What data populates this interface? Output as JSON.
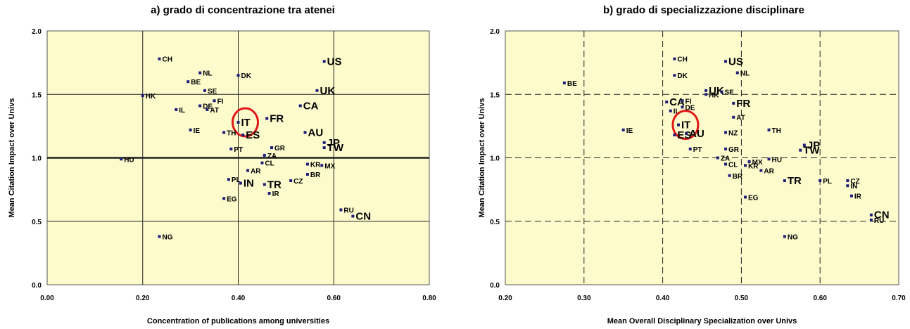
{
  "chart_data": [
    {
      "type": "scatter",
      "title": "a) grado di concentrazione tra atenei",
      "xlabel": "Concentration of publications among universities",
      "ylabel": "Mean Citation Impact over Univs",
      "xlim": [
        0.0,
        0.8
      ],
      "ylim": [
        0.0,
        2.0
      ],
      "xticks": [
        "0.00",
        "0.20",
        "0.40",
        "0.60",
        "0.80"
      ],
      "yticks": [
        "0.0",
        "0.5",
        "1.0",
        "1.5",
        "2.0"
      ],
      "grid": true,
      "highlight": "IT",
      "points": [
        {
          "label": "CH",
          "x": 0.235,
          "y": 1.78,
          "big": false
        },
        {
          "label": "US",
          "x": 0.58,
          "y": 1.76,
          "big": true
        },
        {
          "label": "NL",
          "x": 0.32,
          "y": 1.67,
          "big": false
        },
        {
          "label": "DK",
          "x": 0.4,
          "y": 1.65,
          "big": false
        },
        {
          "label": "BE",
          "x": 0.295,
          "y": 1.6,
          "big": false
        },
        {
          "label": "SE",
          "x": 0.33,
          "y": 1.53,
          "big": false
        },
        {
          "label": "UK",
          "x": 0.565,
          "y": 1.53,
          "big": true
        },
        {
          "label": "HK",
          "x": 0.2,
          "y": 1.49,
          "big": false
        },
        {
          "label": "FI",
          "x": 0.35,
          "y": 1.45,
          "big": false
        },
        {
          "label": "DE",
          "x": 0.32,
          "y": 1.41,
          "big": false
        },
        {
          "label": "CA",
          "x": 0.53,
          "y": 1.41,
          "big": true
        },
        {
          "label": "IL",
          "x": 0.27,
          "y": 1.38,
          "big": false
        },
        {
          "label": "AT",
          "x": 0.335,
          "y": 1.38,
          "big": false
        },
        {
          "label": "FR",
          "x": 0.46,
          "y": 1.31,
          "big": true
        },
        {
          "label": "IT",
          "x": 0.4,
          "y": 1.28,
          "big": true
        },
        {
          "label": "IE",
          "x": 0.3,
          "y": 1.22,
          "big": false
        },
        {
          "label": "TH",
          "x": 0.37,
          "y": 1.2,
          "big": false
        },
        {
          "label": "ES",
          "x": 0.41,
          "y": 1.18,
          "big": true
        },
        {
          "label": "AU",
          "x": 0.54,
          "y": 1.2,
          "big": true
        },
        {
          "label": "JP",
          "x": 0.58,
          "y": 1.12,
          "big": true
        },
        {
          "label": "TW",
          "x": 0.58,
          "y": 1.08,
          "big": true
        },
        {
          "label": "PT",
          "x": 0.385,
          "y": 1.07,
          "big": false
        },
        {
          "label": "GR",
          "x": 0.47,
          "y": 1.08,
          "big": false
        },
        {
          "label": "ZA",
          "x": 0.455,
          "y": 1.02,
          "big": false
        },
        {
          "label": "HU",
          "x": 0.155,
          "y": 0.99,
          "big": false
        },
        {
          "label": "CL",
          "x": 0.45,
          "y": 0.96,
          "big": false
        },
        {
          "label": "KR",
          "x": 0.545,
          "y": 0.95,
          "big": false
        },
        {
          "label": "MX",
          "x": 0.575,
          "y": 0.94,
          "big": false
        },
        {
          "label": "AR",
          "x": 0.42,
          "y": 0.9,
          "big": false
        },
        {
          "label": "BR",
          "x": 0.545,
          "y": 0.87,
          "big": false
        },
        {
          "label": "PL",
          "x": 0.38,
          "y": 0.83,
          "big": false
        },
        {
          "label": "CZ",
          "x": 0.51,
          "y": 0.82,
          "big": false
        },
        {
          "label": "IN",
          "x": 0.405,
          "y": 0.8,
          "big": true
        },
        {
          "label": "TR",
          "x": 0.455,
          "y": 0.79,
          "big": true
        },
        {
          "label": "IR",
          "x": 0.465,
          "y": 0.72,
          "big": false
        },
        {
          "label": "EG",
          "x": 0.37,
          "y": 0.68,
          "big": false
        },
        {
          "label": "RU",
          "x": 0.615,
          "y": 0.59,
          "big": false
        },
        {
          "label": "CN",
          "x": 0.64,
          "y": 0.54,
          "big": true
        },
        {
          "label": "NG",
          "x": 0.235,
          "y": 0.38,
          "big": false
        }
      ]
    },
    {
      "type": "scatter",
      "title": "b) grado di specializzazione disciplinare",
      "xlabel": "Mean Overall Disciplinary Specialization over Univs",
      "ylabel": "Mean Citation Impact over Univs",
      "xlim": [
        0.2,
        0.7
      ],
      "ylim": [
        0.0,
        2.0
      ],
      "xticks": [
        "0.20",
        "0.30",
        "0.40",
        "0.50",
        "0.60",
        "0.70"
      ],
      "yticks": [
        "0.0",
        "0.5",
        "1.0",
        "1.5",
        "2.0"
      ],
      "grid": true,
      "highlight": "IT",
      "points": [
        {
          "label": "CH",
          "x": 0.415,
          "y": 1.78,
          "big": false
        },
        {
          "label": "US",
          "x": 0.48,
          "y": 1.76,
          "big": true
        },
        {
          "label": "DK",
          "x": 0.415,
          "y": 1.65,
          "big": false
        },
        {
          "label": "NL",
          "x": 0.495,
          "y": 1.67,
          "big": false
        },
        {
          "label": "BE",
          "x": 0.275,
          "y": 1.59,
          "big": false
        },
        {
          "label": "UK",
          "x": 0.455,
          "y": 1.53,
          "big": true
        },
        {
          "label": "SE",
          "x": 0.475,
          "y": 1.52,
          "big": false
        },
        {
          "label": "HK",
          "x": 0.455,
          "y": 1.5,
          "big": false
        },
        {
          "label": "CA",
          "x": 0.405,
          "y": 1.44,
          "big": true
        },
        {
          "label": "FI",
          "x": 0.425,
          "y": 1.45,
          "big": false
        },
        {
          "label": "FR",
          "x": 0.49,
          "y": 1.43,
          "big": true
        },
        {
          "label": "DE",
          "x": 0.425,
          "y": 1.4,
          "big": false
        },
        {
          "label": "IL",
          "x": 0.41,
          "y": 1.37,
          "big": false
        },
        {
          "label": "AT",
          "x": 0.49,
          "y": 1.32,
          "big": false
        },
        {
          "label": "IT",
          "x": 0.42,
          "y": 1.26,
          "big": true
        },
        {
          "label": "IE",
          "x": 0.35,
          "y": 1.22,
          "big": false
        },
        {
          "label": "TH",
          "x": 0.535,
          "y": 1.22,
          "big": false
        },
        {
          "label": "NZ",
          "x": 0.48,
          "y": 1.2,
          "big": false
        },
        {
          "label": "ES",
          "x": 0.415,
          "y": 1.18,
          "big": true
        },
        {
          "label": "AU",
          "x": 0.43,
          "y": 1.19,
          "big": true
        },
        {
          "label": "JP",
          "x": 0.58,
          "y": 1.1,
          "big": true
        },
        {
          "label": "PT",
          "x": 0.435,
          "y": 1.07,
          "big": false
        },
        {
          "label": "GR",
          "x": 0.48,
          "y": 1.07,
          "big": false
        },
        {
          "label": "TW",
          "x": 0.575,
          "y": 1.06,
          "big": true
        },
        {
          "label": "ZA",
          "x": 0.47,
          "y": 1.0,
          "big": false
        },
        {
          "label": "HU",
          "x": 0.535,
          "y": 0.99,
          "big": false
        },
        {
          "label": "MX",
          "x": 0.51,
          "y": 0.97,
          "big": false
        },
        {
          "label": "CL",
          "x": 0.48,
          "y": 0.95,
          "big": false
        },
        {
          "label": "KR",
          "x": 0.505,
          "y": 0.94,
          "big": false
        },
        {
          "label": "AR",
          "x": 0.525,
          "y": 0.9,
          "big": false
        },
        {
          "label": "BR",
          "x": 0.485,
          "y": 0.86,
          "big": false
        },
        {
          "label": "CZ",
          "x": 0.635,
          "y": 0.82,
          "big": false
        },
        {
          "label": "TR",
          "x": 0.555,
          "y": 0.82,
          "big": true
        },
        {
          "label": "PL",
          "x": 0.6,
          "y": 0.82,
          "big": false
        },
        {
          "label": "IN",
          "x": 0.635,
          "y": 0.78,
          "big": false
        },
        {
          "label": "IR",
          "x": 0.64,
          "y": 0.7,
          "big": false
        },
        {
          "label": "EG",
          "x": 0.505,
          "y": 0.69,
          "big": false
        },
        {
          "label": "CN",
          "x": 0.665,
          "y": 0.55,
          "big": true
        },
        {
          "label": "RU",
          "x": 0.665,
          "y": 0.51,
          "big": false
        },
        {
          "label": "NG",
          "x": 0.555,
          "y": 0.38,
          "big": false
        }
      ]
    }
  ],
  "colors": {
    "plot_bg": "#fdfbcc",
    "marker": "#1f1f7a",
    "highlight_ring": "#e01818"
  }
}
